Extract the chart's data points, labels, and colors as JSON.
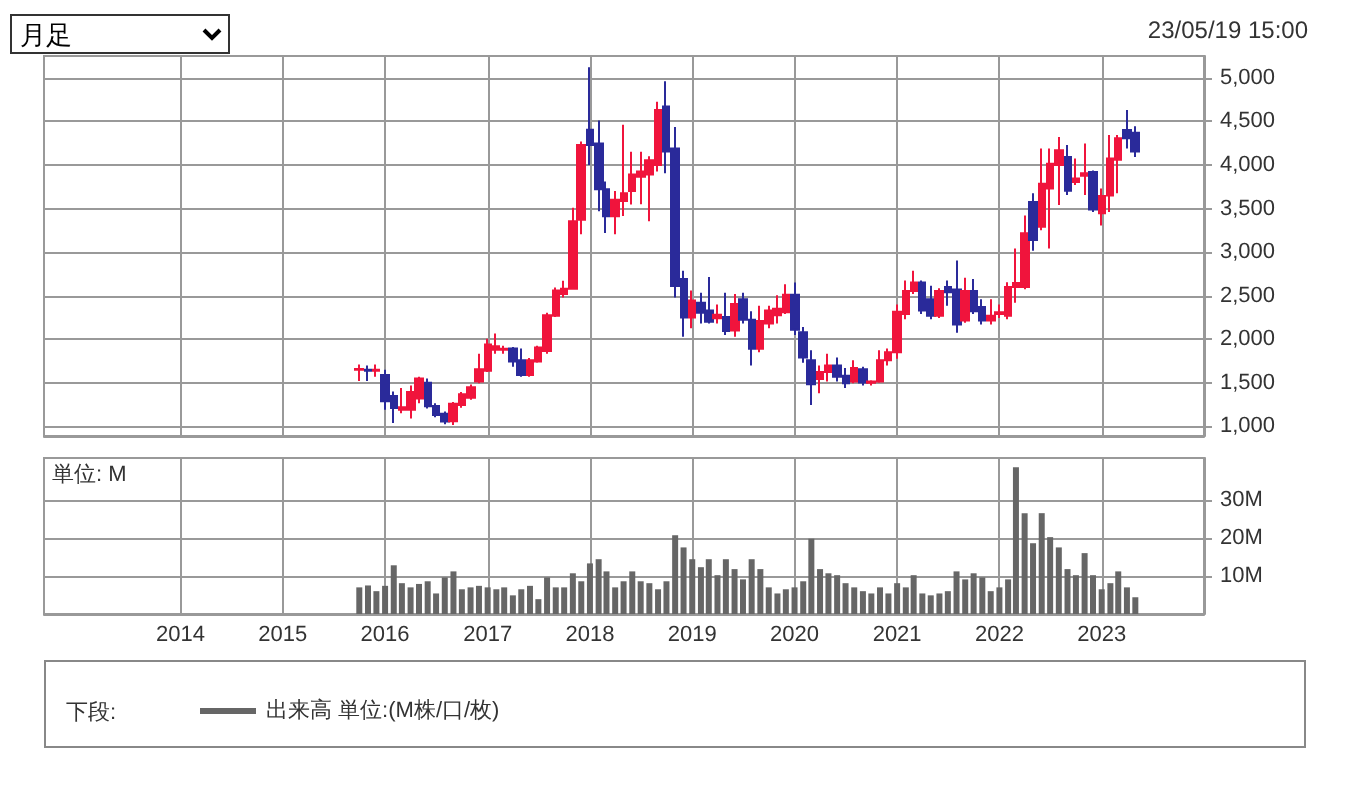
{
  "chart_data": [
    {
      "type": "candlestick",
      "annotations": [
        "月足",
        "23/05/19 15:00"
      ],
      "tick_labels": "y",
      "grid": true,
      "xlim": [
        "2012-09",
        "2024-01"
      ],
      "xticks": [
        "2014",
        "2015",
        "2016",
        "2017",
        "2018",
        "2019",
        "2020",
        "2021",
        "2022",
        "2023"
      ],
      "ylim": [
        890,
        5250
      ],
      "yticks": [
        {
          "value": 1000,
          "label": "1,000"
        },
        {
          "value": 1500,
          "label": "1,500"
        },
        {
          "value": 2000,
          "label": "2,000"
        },
        {
          "value": 2500,
          "label": "2,500"
        },
        {
          "value": 3000,
          "label": "3,000"
        },
        {
          "value": 3500,
          "label": "3,500"
        },
        {
          "value": 4000,
          "label": "4,000"
        },
        {
          "value": 4500,
          "label": "4,500"
        },
        {
          "value": 5000,
          "label": "5,000"
        }
      ],
      "x": [
        "2015-10",
        "2015-11",
        "2015-12",
        "2016-01",
        "2016-02",
        "2016-03",
        "2016-04",
        "2016-05",
        "2016-06",
        "2016-07",
        "2016-08",
        "2016-09",
        "2016-10",
        "2016-11",
        "2016-12",
        "2017-01",
        "2017-02",
        "2017-03",
        "2017-04",
        "2017-05",
        "2017-06",
        "2017-07",
        "2017-08",
        "2017-09",
        "2017-10",
        "2017-11",
        "2017-12",
        "2018-01",
        "2018-02",
        "2018-03",
        "2018-04",
        "2018-05",
        "2018-06",
        "2018-07",
        "2018-08",
        "2018-09",
        "2018-10",
        "2018-11",
        "2018-12",
        "2019-01",
        "2019-02",
        "2019-03",
        "2019-04",
        "2019-05",
        "2019-06",
        "2019-07",
        "2019-08",
        "2019-09",
        "2019-10",
        "2019-11",
        "2019-12",
        "2020-01",
        "2020-02",
        "2020-03",
        "2020-04",
        "2020-05",
        "2020-06",
        "2020-07",
        "2020-08",
        "2020-09",
        "2020-10",
        "2020-11",
        "2020-12",
        "2021-01",
        "2021-02",
        "2021-03",
        "2021-04",
        "2021-05",
        "2021-06",
        "2021-07",
        "2021-08",
        "2021-09",
        "2021-10",
        "2021-11",
        "2021-12",
        "2022-01",
        "2022-02",
        "2022-03",
        "2022-04",
        "2022-05",
        "2022-06",
        "2022-07",
        "2022-08",
        "2022-09",
        "2022-10",
        "2022-11",
        "2022-12",
        "2023-01",
        "2023-02",
        "2023-03",
        "2023-04",
        "2023-05"
      ],
      "ohlc": [
        [
          1650,
          1710,
          1520,
          1660
        ],
        [
          1650,
          1700,
          1520,
          1640
        ],
        [
          1640,
          1710,
          1570,
          1650
        ],
        [
          1590,
          1650,
          1190,
          1290
        ],
        [
          1350,
          1400,
          1040,
          1210
        ],
        [
          1190,
          1440,
          1150,
          1220
        ],
        [
          1190,
          1470,
          1090,
          1395
        ],
        [
          1320,
          1570,
          1265,
          1550
        ],
        [
          1500,
          1550,
          1205,
          1230
        ],
        [
          1235,
          1265,
          1105,
          1130
        ],
        [
          1145,
          1170,
          1025,
          1055
        ],
        [
          1060,
          1280,
          1015,
          1260
        ],
        [
          1245,
          1395,
          1215,
          1370
        ],
        [
          1330,
          1480,
          1305,
          1450
        ],
        [
          1515,
          1835,
          1495,
          1655
        ],
        [
          1640,
          2005,
          1625,
          1940
        ],
        [
          1880,
          2065,
          1835,
          1920
        ],
        [
          1880,
          1925,
          1835,
          1890
        ],
        [
          1895,
          1910,
          1685,
          1745
        ],
        [
          1760,
          1895,
          1570,
          1590
        ],
        [
          1590,
          1785,
          1570,
          1760
        ],
        [
          1745,
          1925,
          1730,
          1905
        ],
        [
          1865,
          2305,
          1835,
          2275
        ],
        [
          2270,
          2595,
          2255,
          2560
        ],
        [
          2520,
          2670,
          2480,
          2580
        ],
        [
          2580,
          3510,
          2580,
          3355
        ],
        [
          3370,
          4270,
          3205,
          4230
        ],
        [
          4405,
          5120,
          4000,
          4230
        ],
        [
          4245,
          4510,
          3470,
          3720
        ],
        [
          3720,
          3810,
          3220,
          3410
        ],
        [
          3410,
          3700,
          3205,
          3600
        ],
        [
          3585,
          4460,
          3415,
          3675
        ],
        [
          3700,
          4150,
          3545,
          3890
        ],
        [
          3865,
          4150,
          3550,
          3925
        ],
        [
          3890,
          4100,
          3355,
          4055
        ],
        [
          4000,
          4725,
          3925,
          4630
        ],
        [
          4670,
          4960,
          3905,
          4155
        ],
        [
          4190,
          4435,
          2480,
          2610
        ],
        [
          2690,
          2785,
          2030,
          2250
        ],
        [
          2250,
          2560,
          2125,
          2445
        ],
        [
          2420,
          2535,
          2180,
          2305
        ],
        [
          2330,
          2715,
          2180,
          2200
        ],
        [
          2240,
          2400,
          2180,
          2280
        ],
        [
          2255,
          2535,
          2050,
          2095
        ],
        [
          2100,
          2520,
          2030,
          2405
        ],
        [
          2460,
          2535,
          2180,
          2225
        ],
        [
          2225,
          2320,
          1700,
          1890
        ],
        [
          1890,
          2385,
          1850,
          2210
        ],
        [
          2180,
          2385,
          2125,
          2330
        ],
        [
          2275,
          2505,
          2180,
          2350
        ],
        [
          2310,
          2630,
          2290,
          2510
        ],
        [
          2510,
          2650,
          2050,
          2110
        ],
        [
          2080,
          2140,
          1730,
          1790
        ],
        [
          1760,
          1875,
          1245,
          1485
        ],
        [
          1545,
          1700,
          1380,
          1625
        ],
        [
          1625,
          1835,
          1515,
          1700
        ],
        [
          1700,
          1790,
          1515,
          1570
        ],
        [
          1580,
          1670,
          1440,
          1495
        ],
        [
          1515,
          1760,
          1495,
          1670
        ],
        [
          1655,
          1685,
          1470,
          1505
        ],
        [
          1500,
          1530,
          1470,
          1515
        ],
        [
          1515,
          1875,
          1500,
          1760
        ],
        [
          1760,
          1895,
          1700,
          1850
        ],
        [
          1850,
          2400,
          1775,
          2315
        ],
        [
          2290,
          2675,
          2230,
          2555
        ],
        [
          2555,
          2785,
          2520,
          2650
        ],
        [
          2650,
          2675,
          2290,
          2330
        ],
        [
          2460,
          2615,
          2230,
          2270
        ],
        [
          2270,
          2585,
          2245,
          2555
        ],
        [
          2600,
          2675,
          2385,
          2540
        ],
        [
          2570,
          2905,
          2075,
          2170
        ],
        [
          2215,
          2705,
          2190,
          2555
        ],
        [
          2555,
          2690,
          2290,
          2320
        ],
        [
          2370,
          2460,
          2170,
          2215
        ],
        [
          2215,
          2460,
          2170,
          2270
        ],
        [
          2290,
          2400,
          2245,
          2310
        ],
        [
          2270,
          2655,
          2230,
          2600
        ],
        [
          2600,
          3040,
          2420,
          2645
        ],
        [
          2600,
          3420,
          2575,
          3215
        ],
        [
          3575,
          3675,
          3015,
          3140
        ],
        [
          3290,
          4190,
          3250,
          3785
        ],
        [
          3730,
          4190,
          3040,
          4015
        ],
        [
          4000,
          4320,
          3540,
          4170
        ],
        [
          4090,
          4230,
          3655,
          3705
        ],
        [
          3805,
          4075,
          3770,
          3845
        ],
        [
          3875,
          4245,
          3655,
          3905
        ],
        [
          3920,
          3935,
          3460,
          3490
        ],
        [
          3445,
          3730,
          3305,
          3645
        ],
        [
          3650,
          4345,
          3460,
          4075
        ],
        [
          4060,
          4345,
          3675,
          4305
        ],
        [
          4400,
          4630,
          4190,
          4305
        ],
        [
          4370,
          4445,
          4090,
          4155
        ]
      ]
    },
    {
      "type": "bar",
      "ylabel": "単位: M",
      "legend": "bottom",
      "legend_title": "下段:",
      "grid": true,
      "xlim": [
        "2012-09",
        "2024-01"
      ],
      "xticks": [
        "2014",
        "2015",
        "2016",
        "2017",
        "2018",
        "2019",
        "2020",
        "2021",
        "2022",
        "2023"
      ],
      "ylim": [
        0,
        41
      ],
      "yticks": [
        {
          "value": 10,
          "label": "10M"
        },
        {
          "value": 20,
          "label": "20M"
        },
        {
          "value": 30,
          "label": "30M"
        }
      ],
      "x": [
        "2015-10",
        "2015-11",
        "2015-12",
        "2016-01",
        "2016-02",
        "2016-03",
        "2016-04",
        "2016-05",
        "2016-06",
        "2016-07",
        "2016-08",
        "2016-09",
        "2016-10",
        "2016-11",
        "2016-12",
        "2017-01",
        "2017-02",
        "2017-03",
        "2017-04",
        "2017-05",
        "2017-06",
        "2017-07",
        "2017-08",
        "2017-09",
        "2017-10",
        "2017-11",
        "2017-12",
        "2018-01",
        "2018-02",
        "2018-03",
        "2018-04",
        "2018-05",
        "2018-06",
        "2018-07",
        "2018-08",
        "2018-09",
        "2018-10",
        "2018-11",
        "2018-12",
        "2019-01",
        "2019-02",
        "2019-03",
        "2019-04",
        "2019-05",
        "2019-06",
        "2019-07",
        "2019-08",
        "2019-09",
        "2019-10",
        "2019-11",
        "2019-12",
        "2020-01",
        "2020-02",
        "2020-03",
        "2020-04",
        "2020-05",
        "2020-06",
        "2020-07",
        "2020-08",
        "2020-09",
        "2020-10",
        "2020-11",
        "2020-12",
        "2021-01",
        "2021-02",
        "2021-03",
        "2021-04",
        "2021-05",
        "2021-06",
        "2021-07",
        "2021-08",
        "2021-09",
        "2021-10",
        "2021-11",
        "2021-12",
        "2022-01",
        "2022-02",
        "2022-03",
        "2022-04",
        "2022-05",
        "2022-06",
        "2022-07",
        "2022-08",
        "2022-09",
        "2022-10",
        "2022-11",
        "2022-12",
        "2023-01",
        "2023-02",
        "2023-03",
        "2023-04",
        "2023-05"
      ],
      "series": [
        {
          "name": "出来高 単位:(M株/口/枚)",
          "color": "#666666",
          "values": [
            7.0,
            7.5,
            6.0,
            7.4,
            12.8,
            8.1,
            7.0,
            7.9,
            8.6,
            5.4,
            9.6,
            11.2,
            6.5,
            7.0,
            7.4,
            7.0,
            6.5,
            7.0,
            4.9,
            6.5,
            7.4,
            3.9,
            9.6,
            7.0,
            7.0,
            10.7,
            8.6,
            13.3,
            14.4,
            11.2,
            7.0,
            8.6,
            11.2,
            8.6,
            8.1,
            6.5,
            8.6,
            20.7,
            17.5,
            14.4,
            12.3,
            14.4,
            10.2,
            14.4,
            11.8,
            9.1,
            14.4,
            11.8,
            7.0,
            5.4,
            6.5,
            7.0,
            8.6,
            19.8,
            11.8,
            10.7,
            10.2,
            8.1,
            7.0,
            6.0,
            5.4,
            7.0,
            5.4,
            8.1,
            7.0,
            10.2,
            5.4,
            4.9,
            5.4,
            6.0,
            11.2,
            9.1,
            10.7,
            9.6,
            6.0,
            7.0,
            9.1,
            38.6,
            26.5,
            18.6,
            26.5,
            20.2,
            17.5,
            11.8,
            10.2,
            16.0,
            10.2,
            6.5,
            8.1,
            11.2,
            7.0,
            4.4
          ]
        }
      ]
    }
  ]
}
